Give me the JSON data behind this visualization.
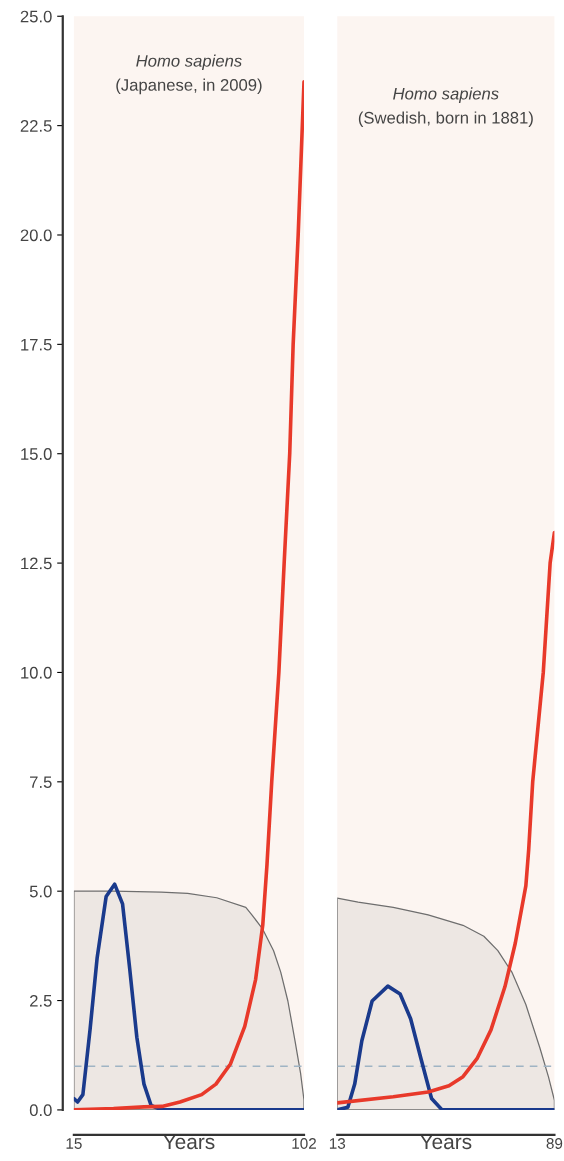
{
  "chart_data": [
    {
      "type": "line",
      "title": "Homo sapiens",
      "subtitle": "(Japanese, in 2009)",
      "xlabel": "Years",
      "xlim": [
        15,
        102
      ],
      "xticks": [
        15,
        102
      ],
      "ylim": [
        0,
        25
      ],
      "yticks": [
        {
          "value": 0,
          "label": "0.0"
        },
        {
          "value": 2.5,
          "label": "2.5"
        },
        {
          "value": 5,
          "label": "5.0"
        },
        {
          "value": 7.5,
          "label": "7.5"
        },
        {
          "value": 10,
          "label": "10.0"
        },
        {
          "value": 12.5,
          "label": "12.5"
        },
        {
          "value": 15,
          "label": "15.0"
        },
        {
          "value": 17.5,
          "label": "17.5"
        },
        {
          "value": 20,
          "label": "20.0"
        },
        {
          "value": 22.5,
          "label": "22.5"
        },
        {
          "value": 25,
          "label": "25.0"
        }
      ],
      "grid": false,
      "ref_lines": [
        {
          "axis": "y",
          "value": 1,
          "color": "#9fb4c4",
          "line_style": "dashed"
        }
      ],
      "series": [
        {
          "type": "area",
          "color": "#6e6e6e",
          "x": [
            15,
            30,
            48,
            58,
            69,
            80,
            82.3,
            86.4,
            90.5,
            93.2,
            95.9,
            98.6,
            100.7,
            102
          ],
          "values": [
            5.0,
            5.0,
            4.98,
            4.95,
            4.85,
            4.63,
            4.46,
            4.13,
            3.64,
            3.15,
            2.49,
            1.58,
            0.84,
            0.22
          ]
        },
        {
          "color": "#1a3a8c",
          "x": [
            15,
            16.4,
            18.4,
            21.1,
            23.8,
            27.2,
            30.4,
            33.4,
            36.1,
            38.8,
            41.5,
            44.2,
            48.3,
            102
          ],
          "values": [
            0.26,
            0.18,
            0.35,
            1.83,
            3.48,
            4.88,
            5.16,
            4.71,
            3.23,
            1.66,
            0.59,
            0.1,
            0.0,
            0.0
          ]
        },
        {
          "color": "#e8392a",
          "x": [
            15,
            30,
            41.5,
            48.3,
            55.1,
            63.3,
            68.7,
            74.2,
            79.6,
            83.7,
            86.4,
            88,
            89.8,
            92.5,
            94.5,
            96.6,
            97.9,
            99.8,
            102
          ],
          "values": [
            0.0,
            0.03,
            0.07,
            0.08,
            0.18,
            0.35,
            0.59,
            1.05,
            1.91,
            2.98,
            4.22,
            5.6,
            7.5,
            10.0,
            12.5,
            15.0,
            17.5,
            20.0,
            23.5
          ]
        }
      ]
    },
    {
      "type": "line",
      "title": "Homo sapiens",
      "subtitle": "(Swedish, born in 1881)",
      "xlabel": "Years",
      "xlim": [
        13,
        89
      ],
      "xticks": [
        13,
        89
      ],
      "ylim": [
        0,
        25
      ],
      "tick_labels": "x",
      "grid": false,
      "ref_lines": [
        {
          "axis": "y",
          "value": 1,
          "color": "#9fb4c4",
          "line_style": "dashed"
        }
      ],
      "series": [
        {
          "type": "area",
          "color": "#6e6e6e",
          "x": [
            13,
            20.3,
            32.6,
            44.8,
            57,
            64.3,
            69.2,
            74.1,
            79,
            83.9,
            86.9,
            89
          ],
          "values": [
            4.84,
            4.75,
            4.63,
            4.46,
            4.22,
            3.97,
            3.64,
            3.15,
            2.41,
            1.42,
            0.76,
            0.22
          ]
        },
        {
          "color": "#1a3a8c",
          "x": [
            13,
            16.7,
            19.1,
            21.6,
            25.2,
            30.7,
            35,
            38.7,
            42.3,
            46,
            49.7,
            89
          ],
          "values": [
            0.0,
            0.06,
            0.59,
            1.58,
            2.49,
            2.83,
            2.65,
            2.08,
            1.17,
            0.26,
            0.0,
            0.0
          ]
        },
        {
          "color": "#e8392a",
          "x": [
            13,
            32.6,
            44.8,
            52.1,
            57,
            61.9,
            66.8,
            71.7,
            75.3,
            79,
            80,
            81.4,
            85.1,
            87.5,
            89
          ],
          "values": [
            0.16,
            0.3,
            0.41,
            0.55,
            0.76,
            1.17,
            1.83,
            2.82,
            3.81,
            5.12,
            5.95,
            7.5,
            10.0,
            12.5,
            13.2
          ]
        }
      ]
    }
  ]
}
